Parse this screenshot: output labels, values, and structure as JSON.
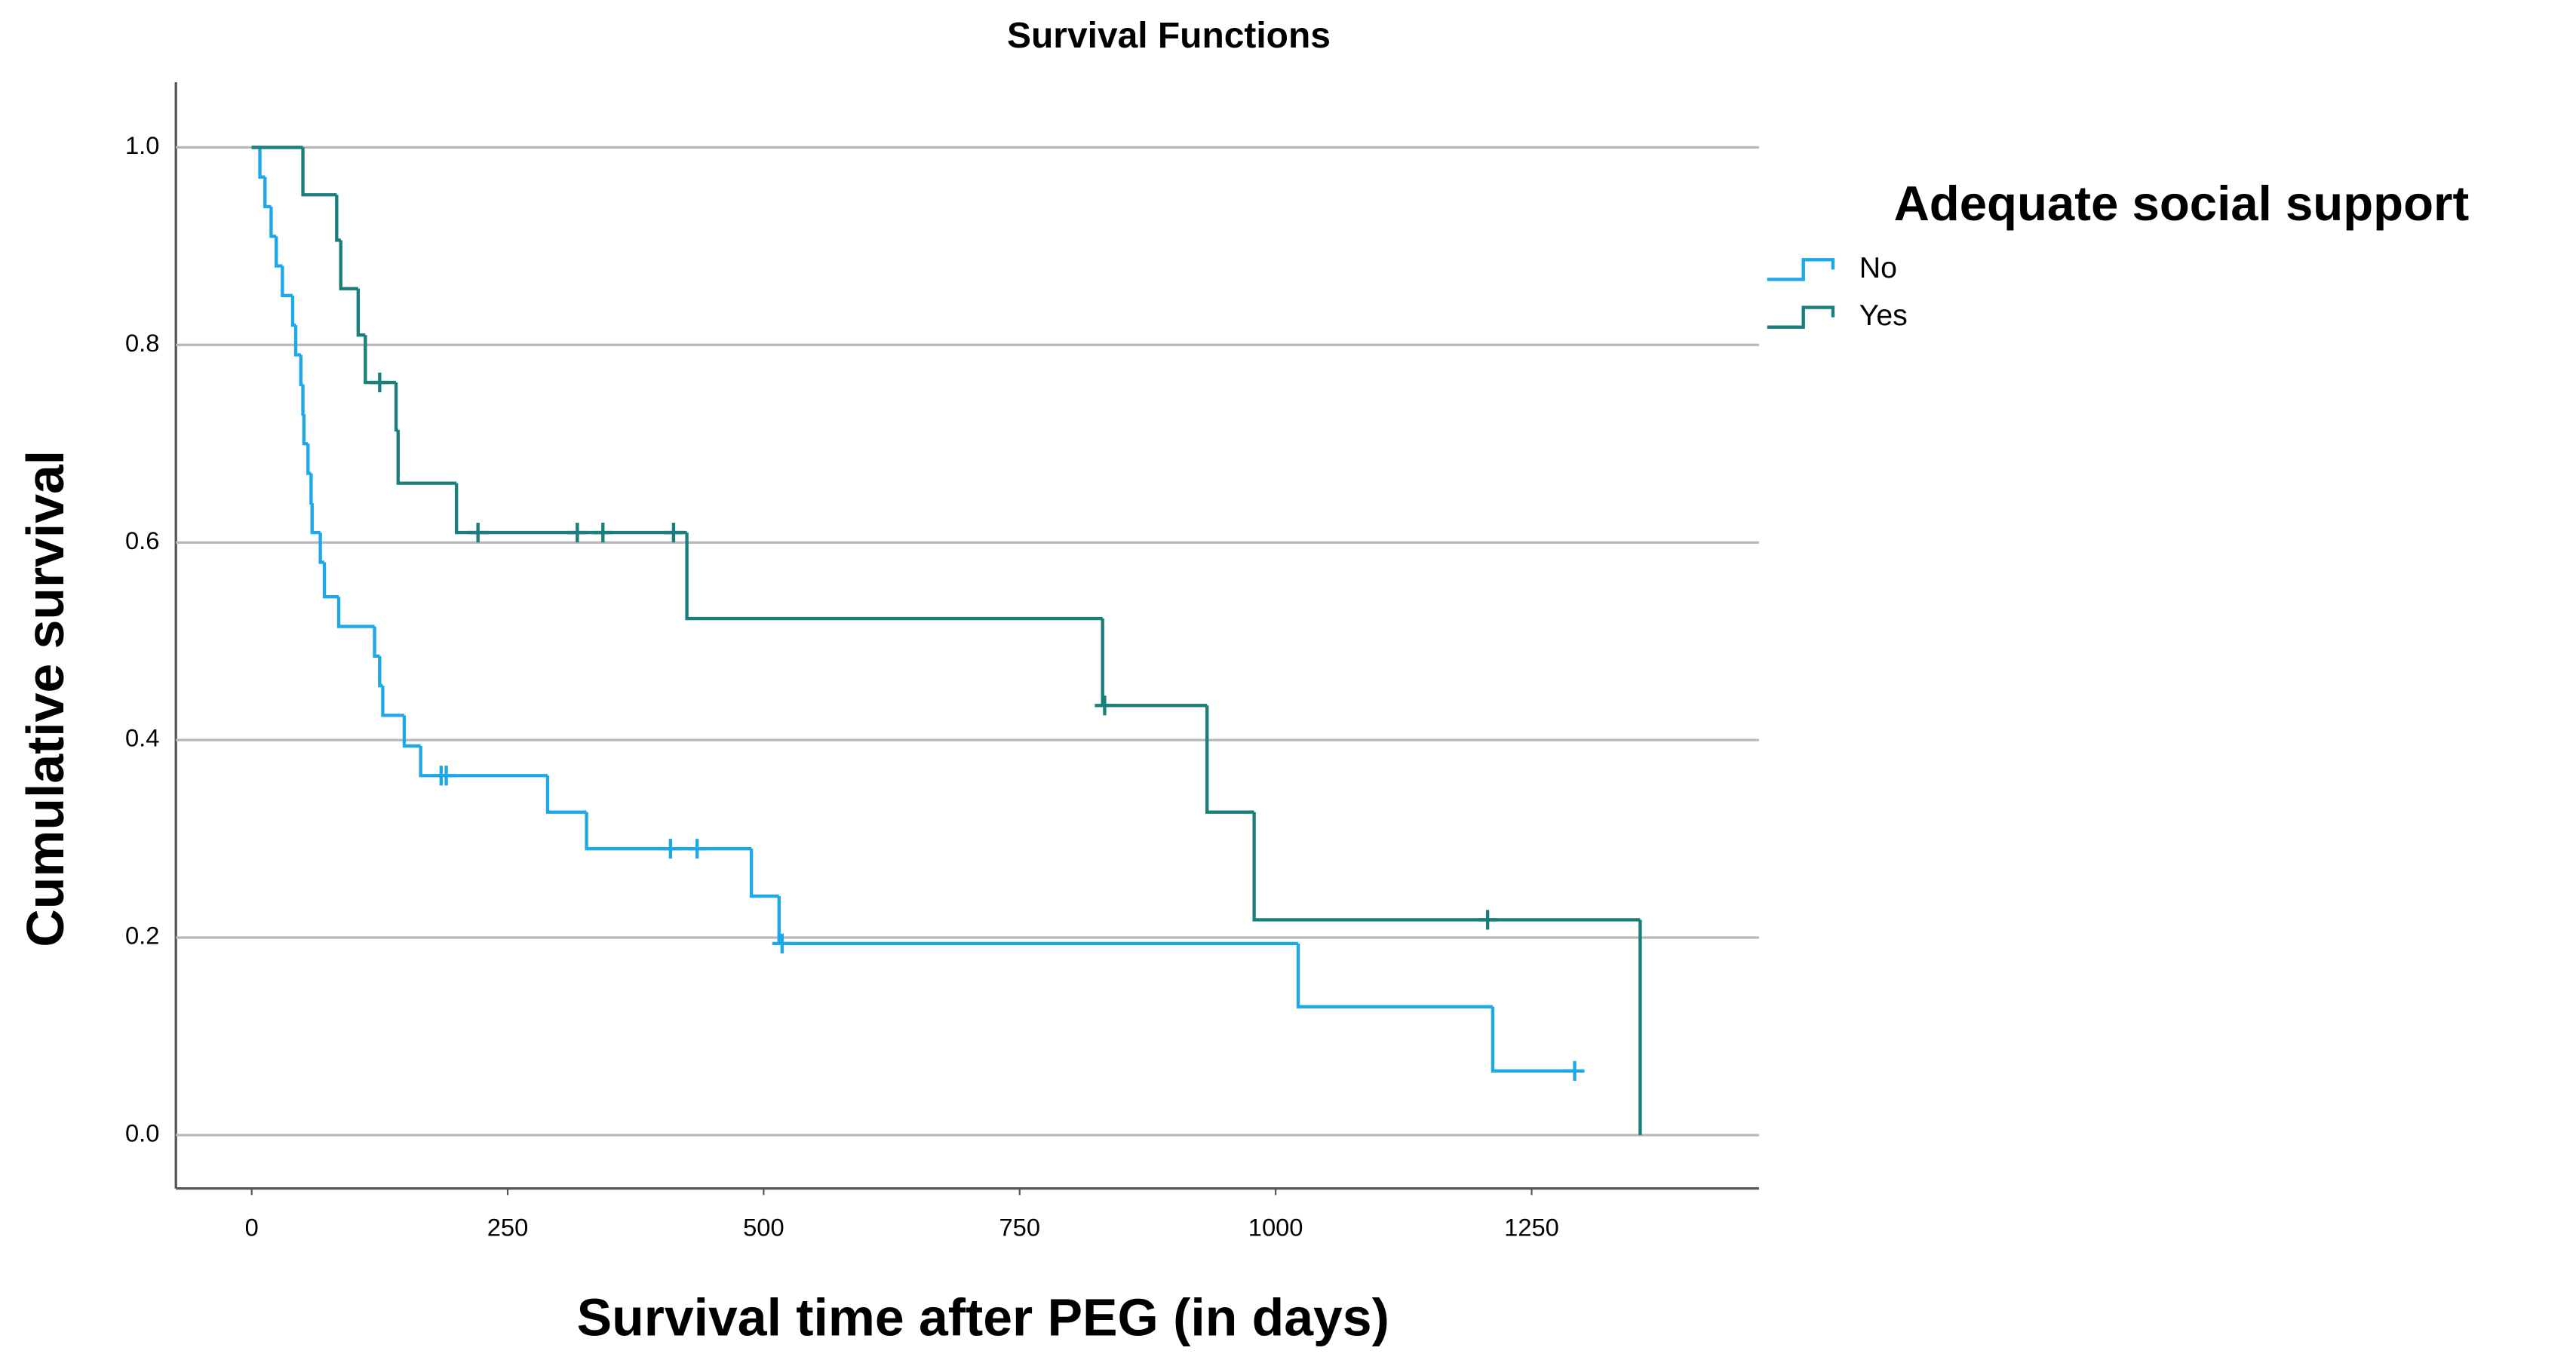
{
  "chart_data": {
    "type": "step",
    "title": "Survival Functions",
    "x_label": "Survival time after PEG (in days)",
    "y_label": "Cumulative survival",
    "legend_title": "Adequate social support",
    "xlim": [
      -74,
      1472
    ],
    "ylim": [
      -0.054,
      1.066
    ],
    "xticks": [
      0,
      250,
      500,
      750,
      1000,
      1250
    ],
    "yticks": [
      {
        "value": 0,
        "label": "0.0"
      },
      {
        "value": 0.2,
        "label": "0.2"
      },
      {
        "value": 0.4,
        "label": "0.4"
      },
      {
        "value": 0.6,
        "label": "0.6"
      },
      {
        "value": 0.8,
        "label": "0.8"
      },
      {
        "value": 1,
        "label": "1.0"
      }
    ],
    "grid": true,
    "series": [
      {
        "name": "No",
        "color": "#1ea8e8",
        "x": [
          0,
          8,
          13,
          19,
          24,
          30,
          40,
          43,
          48,
          50,
          51,
          55,
          58,
          59,
          67,
          71,
          85,
          120,
          125,
          128,
          149,
          165,
          289,
          327,
          488,
          515,
          1022,
          1212
        ],
        "values": [
          1,
          0.97,
          0.94,
          0.91,
          0.88,
          0.85,
          0.82,
          0.79,
          0.76,
          0.73,
          0.7,
          0.67,
          0.64,
          0.61,
          0.58,
          0.545,
          0.515,
          0.485,
          0.455,
          0.425,
          0.394,
          0.364,
          0.327,
          0.29,
          0.242,
          0.194,
          0.13,
          0.065
        ],
        "censored_x": [
          185,
          190,
          409,
          435,
          518,
          1292
        ],
        "censored_values": [
          0.364,
          0.364,
          0.29,
          0.29,
          0.194,
          0.065
        ]
      },
      {
        "name": "Yes",
        "color": "#1a7f7a",
        "x": [
          0,
          50,
          83,
          87,
          104,
          111,
          141,
          143,
          200,
          425,
          831,
          933,
          979,
          1356
        ],
        "values": [
          1,
          0.952,
          0.906,
          0.857,
          0.81,
          0.762,
          0.714,
          0.66,
          0.61,
          0.523,
          0.435,
          0.327,
          0.218,
          0
        ],
        "censored_x": [
          125,
          221,
          318,
          343,
          412,
          833,
          1207
        ],
        "censored_values": [
          0.762,
          0.61,
          0.61,
          0.61,
          0.61,
          0.435,
          0.218
        ]
      }
    ]
  }
}
